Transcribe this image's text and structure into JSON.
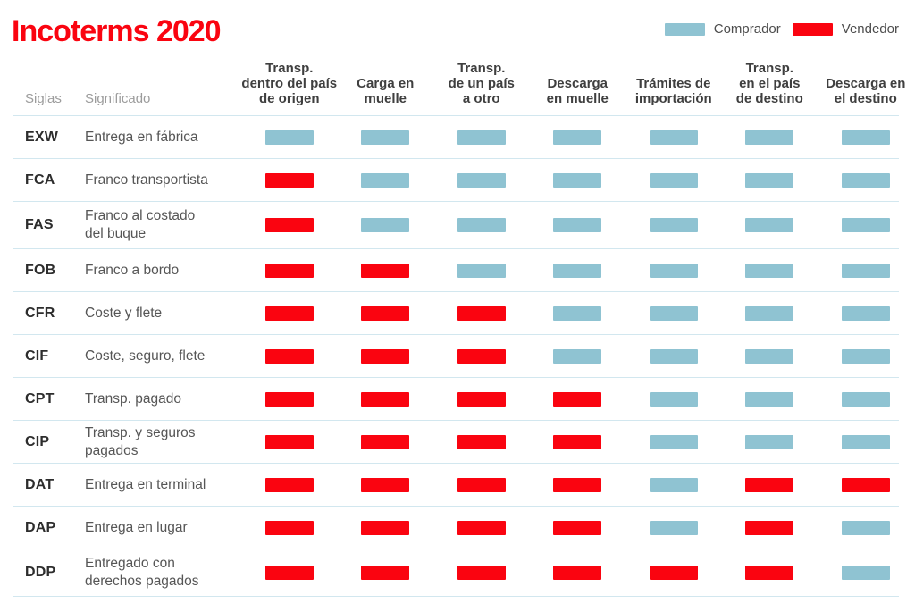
{
  "title": "Incoterms 2020",
  "colors": {
    "title": "#fa0410",
    "comprador": "#8fc3d2",
    "vendedor": "#fa0410",
    "separator": "#d2e7ef"
  },
  "legend": {
    "comprador_label": "Comprador",
    "vendedor_label": "Vendedor"
  },
  "table_corner": {
    "siglas": "Siglas",
    "significado": "Significado"
  },
  "chart_data": {
    "type": "table",
    "title": "Incoterms 2020",
    "legend_position": "top-right",
    "legend": [
      {
        "label": "Comprador",
        "key": "comprador",
        "color": "#8fc3d2"
      },
      {
        "label": "Vendedor",
        "key": "vendedor",
        "color": "#fa0410"
      }
    ],
    "columns": [
      "Transp.\ndentro del país\nde origen",
      "Carga en\nmuelle",
      "Transp.\nde un país\na otro",
      "Descarga\nen muelle",
      "Trámites de\nimportación",
      "Transp.\nen el país\nde destino",
      "Descarga en\nel destino"
    ],
    "rows": [
      {
        "code": "EXW",
        "meaning": "Entrega en fábrica",
        "cells": [
          "comprador",
          "comprador",
          "comprador",
          "comprador",
          "comprador",
          "comprador",
          "comprador"
        ]
      },
      {
        "code": "FCA",
        "meaning": "Franco transportista",
        "cells": [
          "vendedor",
          "comprador",
          "comprador",
          "comprador",
          "comprador",
          "comprador",
          "comprador"
        ]
      },
      {
        "code": "FAS",
        "meaning": "Franco al costado\ndel buque",
        "cells": [
          "vendedor",
          "comprador",
          "comprador",
          "comprador",
          "comprador",
          "comprador",
          "comprador"
        ]
      },
      {
        "code": "FOB",
        "meaning": "Franco a bordo",
        "cells": [
          "vendedor",
          "vendedor",
          "comprador",
          "comprador",
          "comprador",
          "comprador",
          "comprador"
        ]
      },
      {
        "code": "CFR",
        "meaning": "Coste y flete",
        "cells": [
          "vendedor",
          "vendedor",
          "vendedor",
          "comprador",
          "comprador",
          "comprador",
          "comprador"
        ]
      },
      {
        "code": "CIF",
        "meaning": "Coste, seguro, flete",
        "cells": [
          "vendedor",
          "vendedor",
          "vendedor",
          "comprador",
          "comprador",
          "comprador",
          "comprador"
        ]
      },
      {
        "code": "CPT",
        "meaning": "Transp. pagado",
        "cells": [
          "vendedor",
          "vendedor",
          "vendedor",
          "vendedor",
          "comprador",
          "comprador",
          "comprador"
        ]
      },
      {
        "code": "CIP",
        "meaning": "Transp. y seguros pagados",
        "cells": [
          "vendedor",
          "vendedor",
          "vendedor",
          "vendedor",
          "comprador",
          "comprador",
          "comprador"
        ]
      },
      {
        "code": "DAT",
        "meaning": "Entrega en terminal",
        "cells": [
          "vendedor",
          "vendedor",
          "vendedor",
          "vendedor",
          "comprador",
          "vendedor",
          "vendedor"
        ]
      },
      {
        "code": "DAP",
        "meaning": "Entrega en lugar",
        "cells": [
          "vendedor",
          "vendedor",
          "vendedor",
          "vendedor",
          "comprador",
          "vendedor",
          "comprador"
        ]
      },
      {
        "code": "DDP",
        "meaning": "Entregado con\nderechos pagados",
        "cells": [
          "vendedor",
          "vendedor",
          "vendedor",
          "vendedor",
          "vendedor",
          "vendedor",
          "comprador"
        ]
      }
    ]
  }
}
